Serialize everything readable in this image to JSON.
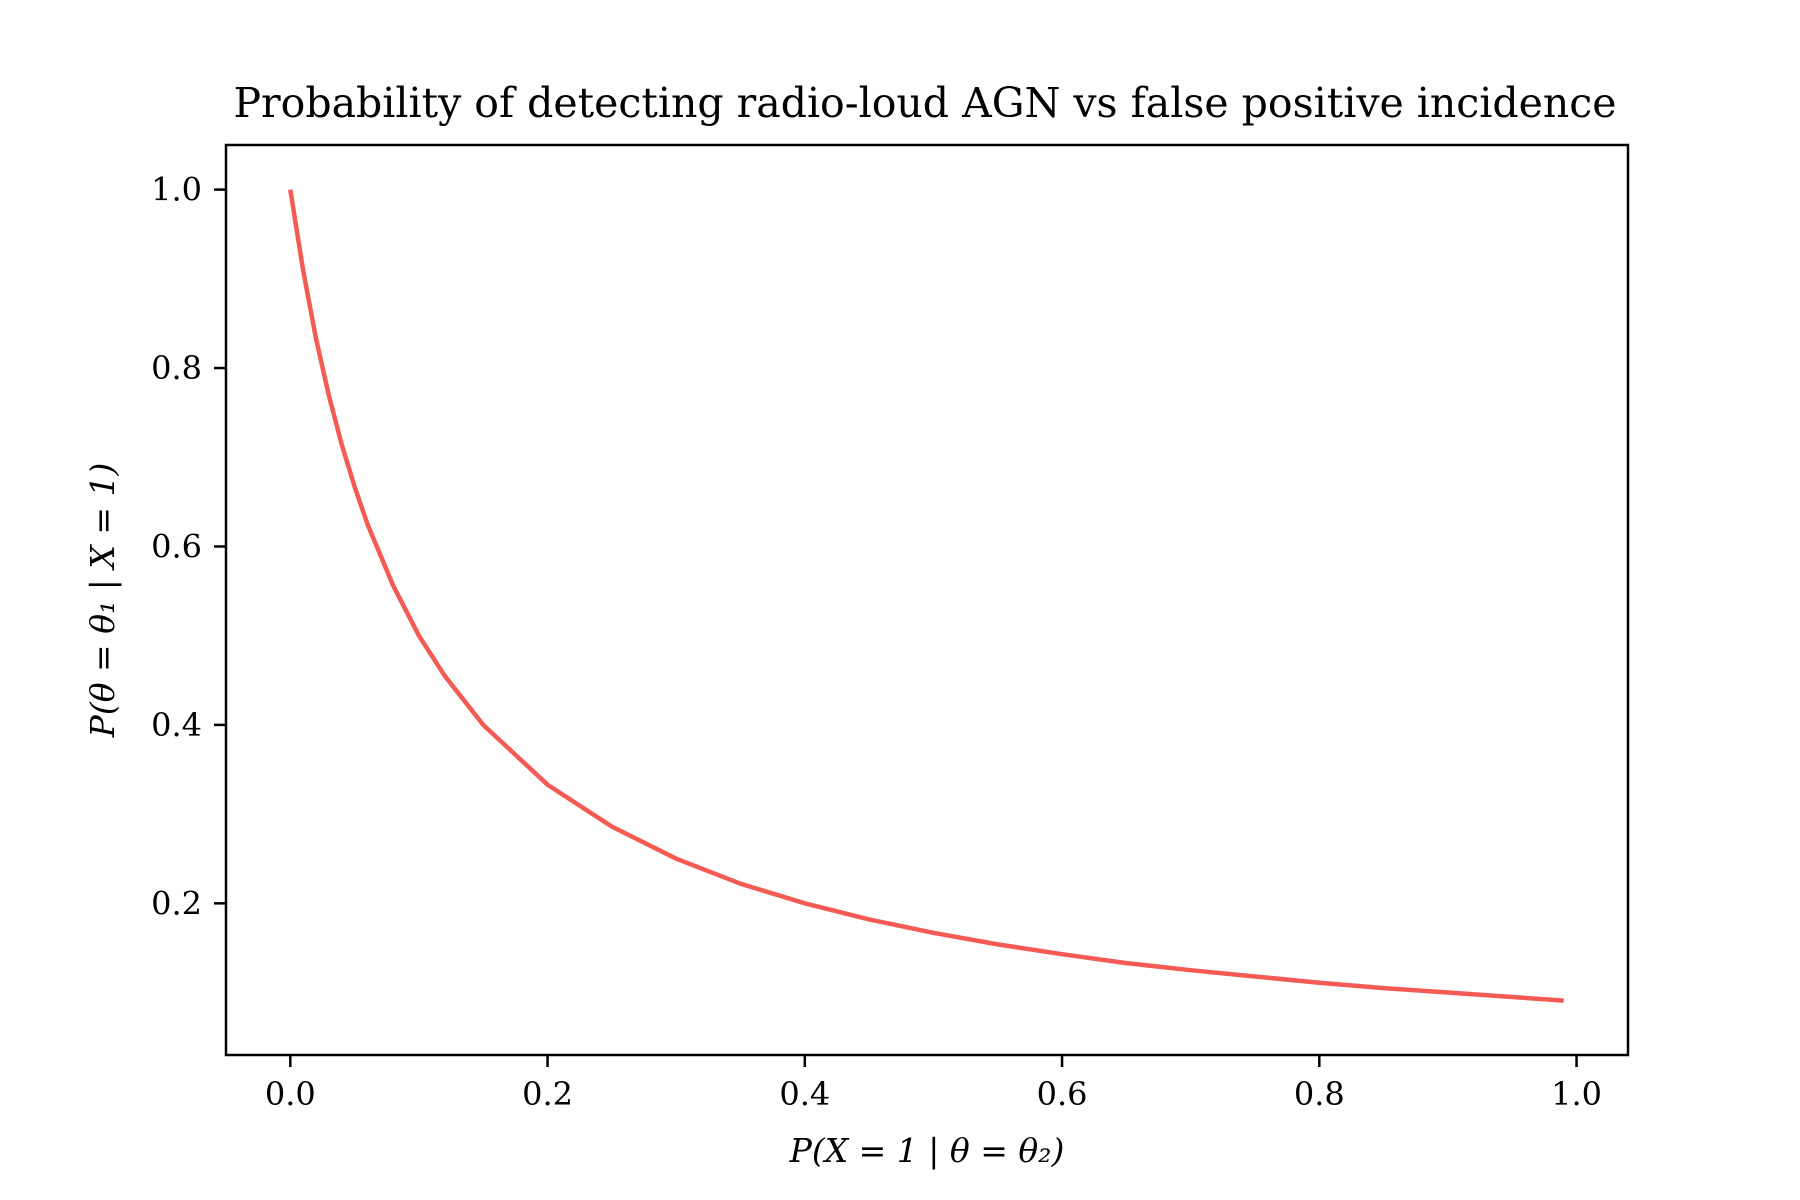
{
  "chart_data": {
    "type": "line",
    "title": "Probability of detecting radio-loud AGN vs false positive incidence",
    "xlabel": "P(X = 1 | θ = θ₂)",
    "ylabel": "P(θ = θ₁ | X = 1)",
    "xlim": [
      -0.05,
      1.04
    ],
    "ylim": [
      0.03,
      1.05
    ],
    "xticks": [
      0.0,
      0.2,
      0.4,
      0.6,
      0.8,
      1.0
    ],
    "yticks": [
      0.2,
      0.4,
      0.6,
      0.8,
      1.0
    ],
    "xtick_labels": [
      "0.0",
      "0.2",
      "0.4",
      "0.6",
      "0.8",
      "1.0"
    ],
    "ytick_labels": [
      "0.2",
      "0.4",
      "0.6",
      "0.8",
      "1.0"
    ],
    "grid": false,
    "legend": "none",
    "series": [
      {
        "color": "#f55b55",
        "x": [
          0.0,
          0.01,
          0.02,
          0.03,
          0.04,
          0.05,
          0.06,
          0.08,
          0.1,
          0.12,
          0.15,
          0.2,
          0.25,
          0.3,
          0.35,
          0.4,
          0.45,
          0.5,
          0.55,
          0.6,
          0.65,
          0.7,
          0.75,
          0.8,
          0.85,
          0.9,
          0.95,
          0.99
        ],
        "y": [
          1.0,
          0.909,
          0.833,
          0.769,
          0.714,
          0.667,
          0.625,
          0.556,
          0.5,
          0.455,
          0.4,
          0.333,
          0.286,
          0.25,
          0.222,
          0.2,
          0.182,
          0.167,
          0.154,
          0.143,
          0.133,
          0.125,
          0.118,
          0.111,
          0.105,
          0.1,
          0.095,
          0.091
        ]
      }
    ]
  }
}
